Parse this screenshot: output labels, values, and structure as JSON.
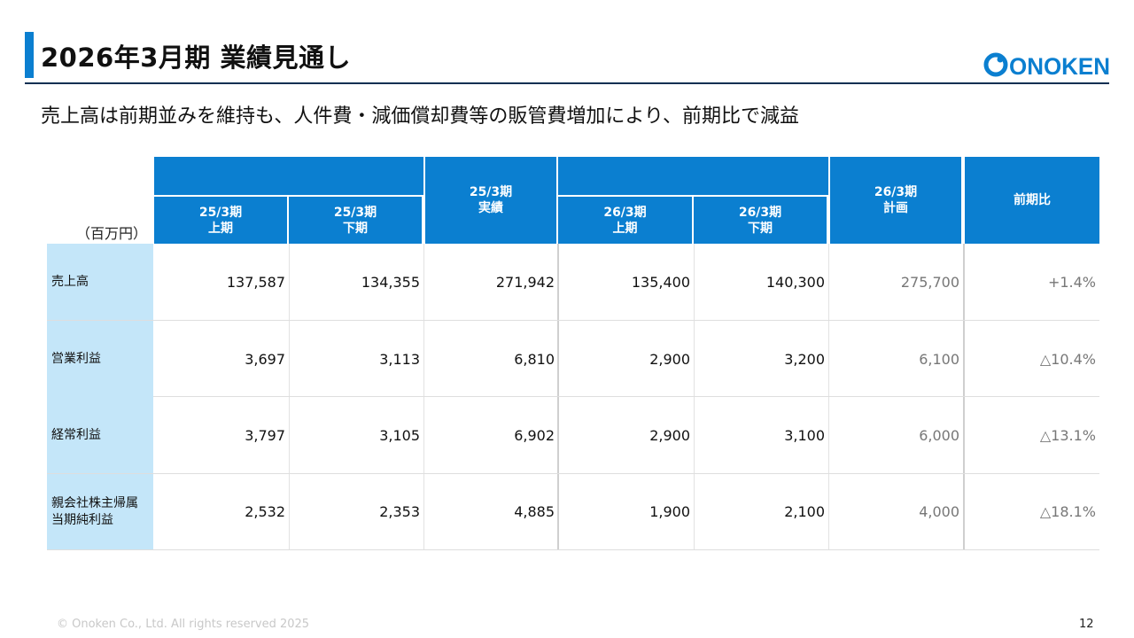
{
  "header": {
    "title": "2026年3月期 業績見通し",
    "subtitle": "売上高は前期並みを維持も、人件費・減価償却費等の販管費増加により、前期比で減益",
    "logo_text": "ONOKEN",
    "accent_color": "#0b7fd0"
  },
  "table": {
    "unit": "（百万円）",
    "col_headers": {
      "fy25_h1": [
        "25/3期",
        "上期"
      ],
      "fy25_h2": [
        "25/3期",
        "下期"
      ],
      "fy25_actual": [
        "25/3期",
        "実績"
      ],
      "fy26_h1": [
        "26/3期",
        "上期"
      ],
      "fy26_h2": [
        "26/3期",
        "下期"
      ],
      "fy26_plan": [
        "26/3期",
        "計画"
      ],
      "yoy": "前期比"
    },
    "rows": [
      {
        "label": [
          "売上高"
        ],
        "values": [
          "137,587",
          "134,355",
          "271,942",
          "135,400",
          "140,300",
          "275,700",
          "+1.4%"
        ]
      },
      {
        "label": [
          "営業利益"
        ],
        "values": [
          "3,697",
          "3,113",
          "6,810",
          "2,900",
          "3,200",
          "6,100",
          "△10.4%"
        ]
      },
      {
        "label": [
          "経常利益"
        ],
        "values": [
          "3,797",
          "3,105",
          "6,902",
          "2,900",
          "3,100",
          "6,000",
          "△13.1%"
        ]
      },
      {
        "label": [
          "親会社株主帰属",
          "当期純利益"
        ],
        "values": [
          "2,532",
          "2,353",
          "4,885",
          "1,900",
          "2,100",
          "4,000",
          "△18.1%"
        ]
      }
    ]
  },
  "footer": {
    "copyright": "© Onoken Co., Ltd. All rights reserved 2025",
    "page": "12"
  }
}
